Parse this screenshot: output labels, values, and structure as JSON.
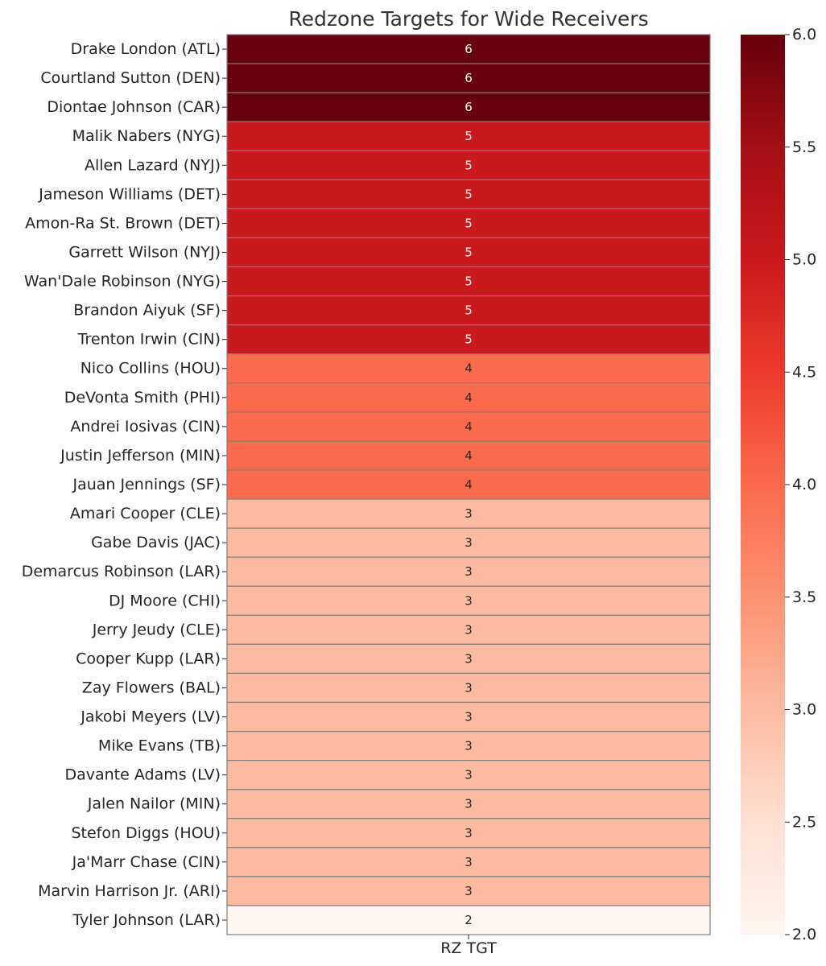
{
  "chart_data": {
    "type": "heatmap",
    "title": "Redzone Targets for Wide Receivers",
    "x_categories": [
      "RZ TGT"
    ],
    "rows": [
      "Drake London (ATL)",
      "Courtland Sutton (DEN)",
      "Diontae Johnson (CAR)",
      "Malik Nabers (NYG)",
      "Allen Lazard (NYJ)",
      "Jameson Williams (DET)",
      "Amon-Ra St. Brown (DET)",
      "Garrett Wilson (NYJ)",
      "Wan'Dale Robinson (NYG)",
      "Brandon Aiyuk (SF)",
      "Trenton Irwin (CIN)",
      "Nico Collins (HOU)",
      "DeVonta Smith (PHI)",
      "Andrei Iosivas (CIN)",
      "Justin Jefferson (MIN)",
      "Jauan Jennings (SF)",
      "Amari Cooper (CLE)",
      "Gabe Davis (JAC)",
      "Demarcus Robinson (LAR)",
      "DJ Moore (CHI)",
      "Jerry Jeudy (CLE)",
      "Cooper Kupp (LAR)",
      "Zay Flowers (BAL)",
      "Jakobi Meyers (LV)",
      "Mike Evans (TB)",
      "Davante Adams (LV)",
      "Jalen Nailor (MIN)",
      "Stefon Diggs (HOU)",
      "Ja'Marr Chase (CIN)",
      "Marvin Harrison Jr. (ARI)",
      "Tyler Johnson (LAR)"
    ],
    "values": [
      6,
      6,
      6,
      5,
      5,
      5,
      5,
      5,
      5,
      5,
      5,
      4,
      4,
      4,
      4,
      4,
      3,
      3,
      3,
      3,
      3,
      3,
      3,
      3,
      3,
      3,
      3,
      3,
      3,
      3,
      2
    ],
    "annotations": [
      "6",
      "6",
      "6",
      "5",
      "5",
      "5",
      "5",
      "5",
      "5",
      "5",
      "5",
      "4",
      "4",
      "4",
      "4",
      "4",
      "3",
      "3",
      "3",
      "3",
      "3",
      "3",
      "3",
      "3",
      "3",
      "3",
      "3",
      "3",
      "3",
      "3",
      "2"
    ],
    "colormap": "Reds",
    "vmin": 2,
    "vmax": 6,
    "colorbar": {
      "ticks": [
        2.0,
        2.5,
        3.0,
        3.5,
        4.0,
        4.5,
        5.0,
        5.5,
        6.0
      ],
      "tick_labels": [
        "2.0",
        "2.5",
        "3.0",
        "3.5",
        "4.0",
        "4.5",
        "5.0",
        "5.5",
        "6.0"
      ],
      "position": "right"
    },
    "cell_edge_color": "#808080",
    "grid": false
  }
}
